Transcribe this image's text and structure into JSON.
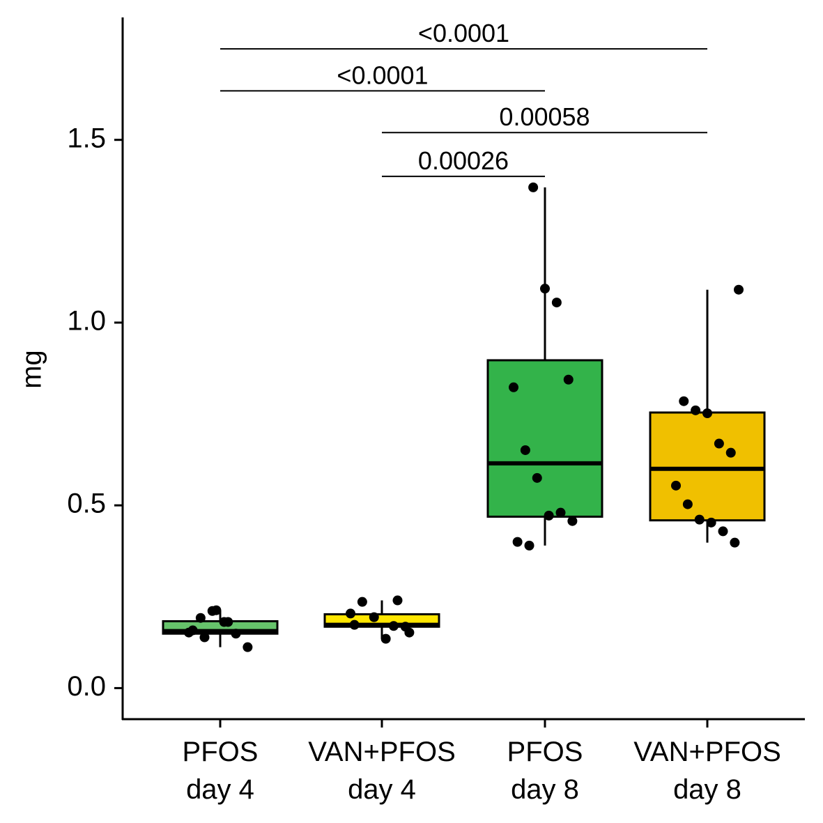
{
  "chart_data": {
    "type": "box",
    "y_label": "mg",
    "categories": [
      [
        "PFOS",
        "day 4"
      ],
      [
        "VAN+PFOS",
        "day 4"
      ],
      [
        "PFOS",
        "day 8"
      ],
      [
        "VAN+PFOS",
        "day 8"
      ]
    ],
    "ylim": [
      -0.085,
      1.835
    ],
    "yticks": [
      {
        "value": 0,
        "label": "0.0"
      },
      0.5,
      {
        "value": 1,
        "label": "1.0"
      },
      1.5
    ],
    "groups": [
      {
        "color": "#66c36b",
        "whisker_low": 0.112,
        "q1": 0.149,
        "median": 0.156,
        "q3": 0.183,
        "whisker_high": 0.213,
        "points": [
          0.152,
          0.192,
          0.211,
          0.181,
          0.149,
          0.112,
          0.158,
          0.139,
          0.213,
          0.181
        ]
      },
      {
        "color": "#ffe600",
        "whisker_low": 0.135,
        "q1": 0.168,
        "median": 0.173,
        "q3": 0.202,
        "whisker_high": 0.24,
        "points": [
          0.17,
          0.168,
          0.204,
          0.236,
          0.194,
          0.135,
          0.24,
          0.152,
          0.173
        ]
      },
      {
        "color": "#33b34a",
        "whisker_low": 0.39,
        "q1": 0.469,
        "median": 0.615,
        "q3": 0.897,
        "whisker_high": 1.37,
        "points": [
          1.37,
          1.093,
          1.055,
          0.844,
          0.823,
          0.651,
          0.575,
          0.472,
          0.48,
          0.457,
          0.4,
          0.39
        ]
      },
      {
        "color": "#f0c000",
        "whisker_low": 0.398,
        "q1": 0.459,
        "median": 0.6,
        "q3": 0.754,
        "whisker_high": 1.09,
        "points": [
          1.09,
          0.785,
          0.76,
          0.752,
          0.669,
          0.644,
          0.554,
          0.503,
          0.461,
          0.453,
          0.429,
          0.398
        ]
      }
    ],
    "comparisons": [
      {
        "from": 0,
        "to": 3,
        "y": 1.749,
        "label": "<0.0001"
      },
      {
        "from": 0,
        "to": 2,
        "y": 1.634,
        "label": "<0.0001"
      },
      {
        "from": 1,
        "to": 3,
        "y": 1.52,
        "label": "0.00058"
      },
      {
        "from": 1,
        "to": 2,
        "y": 1.4,
        "label": "0.00026"
      }
    ]
  }
}
